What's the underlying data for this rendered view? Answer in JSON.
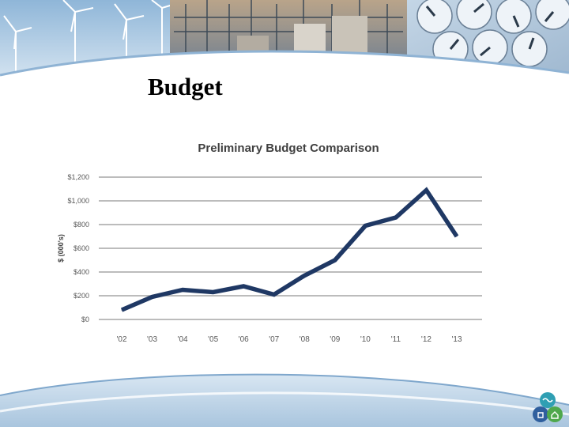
{
  "slide": {
    "title": "Budget",
    "banner_icons": [
      "wind-turbines-photo",
      "substation-photo",
      "electric-meter-dials-photo"
    ],
    "logo_icon": "utility-logo-icon"
  },
  "colors": {
    "line": "#1f3864",
    "grid": "#a6a6a6",
    "axis_text": "#595959",
    "title_text": "#404040",
    "banner_sky": "#cfe0ef",
    "wave": "#8fb3d4"
  },
  "chart_data": {
    "type": "line",
    "title": "Preliminary Budget Comparison",
    "xlabel": "",
    "ylabel": "$ (000's)",
    "categories": [
      "'02",
      "'03",
      "'04",
      "'05",
      "'06",
      "'07",
      "'08",
      "'09",
      "'10",
      "'11",
      "'12",
      "'13"
    ],
    "values": [
      80,
      190,
      250,
      230,
      280,
      210,
      370,
      500,
      790,
      860,
      1090,
      700
    ],
    "y_tick_labels": [
      "$0",
      "$200",
      "$400",
      "$600",
      "$800",
      "$1,000",
      "$1,200"
    ],
    "ylim": [
      0,
      1200
    ],
    "grid": true,
    "legend": "none"
  }
}
